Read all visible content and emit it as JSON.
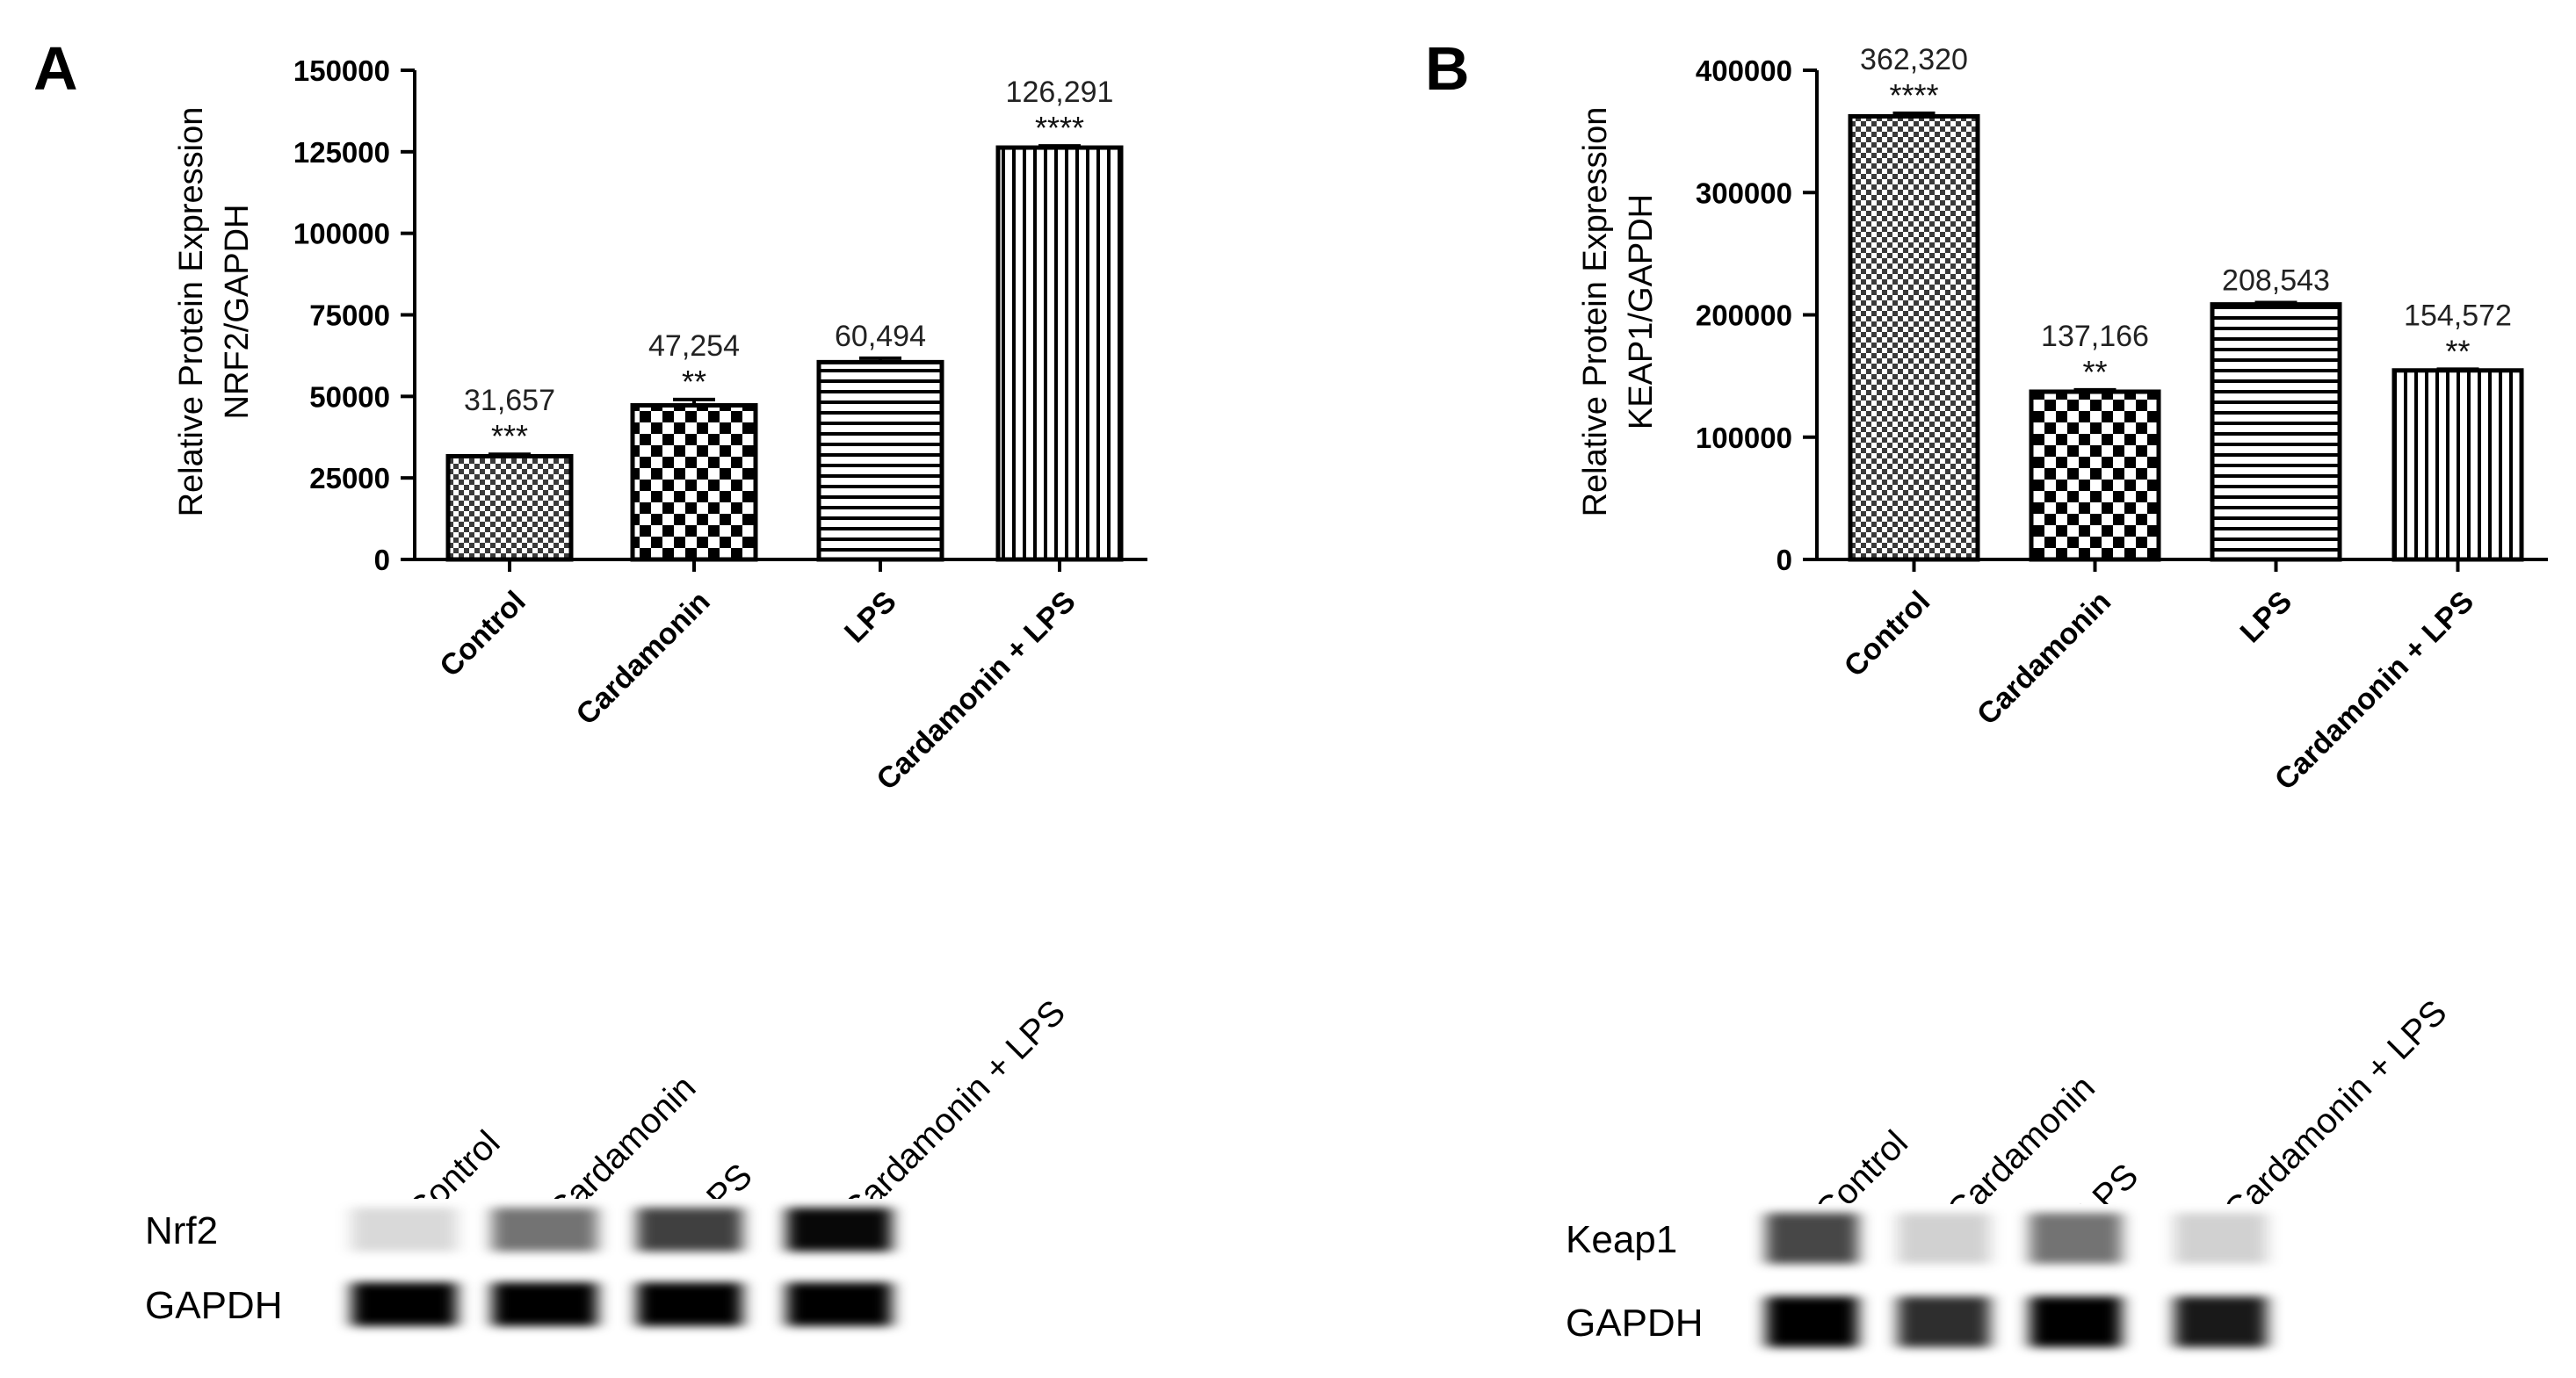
{
  "panels": [
    {
      "letter": "A",
      "chart_data": {
        "type": "bar",
        "ylabel": [
          "Relative Protein Expression",
          "NRF2/GAPDH"
        ],
        "categories": [
          "Control",
          "Cardamonin",
          "LPS",
          "Cardamonin + LPS"
        ],
        "values": [
          31657,
          47254,
          60494,
          126291
        ],
        "value_labels": [
          "31,657",
          "47,254",
          "60,494",
          "126,291"
        ],
        "significance": [
          "***",
          "**",
          "",
          "****"
        ],
        "error": [
          600,
          1800,
          1200,
          500
        ],
        "patterns": [
          "checker-fine",
          "checker-coarse",
          "horizontal-lines",
          "vertical-lines"
        ],
        "ylim": [
          0,
          150000
        ],
        "yticks": [
          0,
          25000,
          50000,
          75000,
          100000,
          125000,
          150000
        ]
      },
      "blot": {
        "lane_labels": [
          "Control",
          "Cardamonin",
          "LPS",
          "Cardamonin + LPS"
        ],
        "rows": [
          {
            "label": "Nrf2",
            "intensities": [
              0.15,
              0.55,
              0.75,
              0.97
            ]
          },
          {
            "label": "GAPDH",
            "intensities": [
              1.0,
              1.0,
              1.0,
              1.0
            ]
          }
        ]
      }
    },
    {
      "letter": "B",
      "chart_data": {
        "type": "bar",
        "ylabel": [
          "Relative Protein Expression",
          "KEAP1/GAPDH"
        ],
        "categories": [
          "Control",
          "Cardamonin",
          "LPS",
          "Cardamonin + LPS"
        ],
        "values": [
          362320,
          137166,
          208543,
          154572
        ],
        "value_labels": [
          "362,320",
          "137,166",
          "208,543",
          "154,572"
        ],
        "significance": [
          "****",
          "**",
          "",
          "**"
        ],
        "error": [
          2500,
          1500,
          1500,
          1000
        ],
        "patterns": [
          "checker-fine",
          "checker-coarse",
          "horizontal-lines",
          "vertical-lines"
        ],
        "ylim": [
          0,
          400000
        ],
        "yticks": [
          0,
          100000,
          200000,
          300000,
          400000
        ]
      },
      "blot": {
        "lane_labels": [
          "Control",
          "Cardamonin",
          "LPS",
          "Cardamonin + LPS"
        ],
        "rows": [
          {
            "label": "Keap1",
            "intensities": [
              0.72,
              0.18,
              0.55,
              0.18
            ]
          },
          {
            "label": "GAPDH",
            "intensities": [
              1.0,
              0.82,
              1.0,
              0.9
            ]
          }
        ]
      }
    }
  ]
}
